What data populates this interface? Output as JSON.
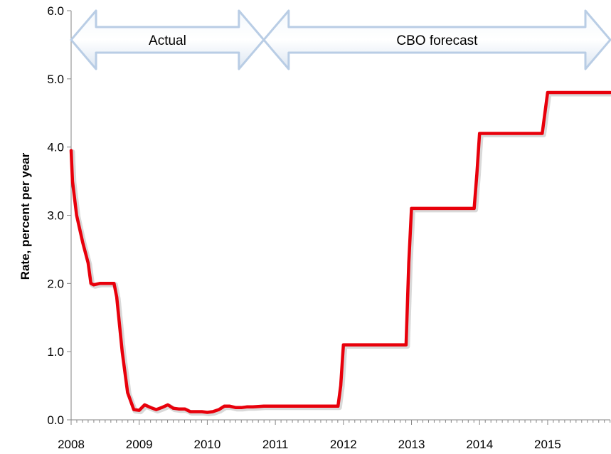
{
  "chart_data": {
    "type": "line",
    "title": "",
    "xlabel": "",
    "ylabel": "Rate, percent per year",
    "xlim": [
      2008,
      2015.92
    ],
    "ylim": [
      0,
      6
    ],
    "x_ticks": [
      "2008",
      "2009",
      "2010",
      "2011",
      "2012",
      "2013",
      "2014",
      "2015"
    ],
    "y_ticks": [
      "0.0",
      "1.0",
      "2.0",
      "3.0",
      "4.0",
      "5.0",
      "6.0"
    ],
    "grid": false,
    "legend": "none",
    "color": "#e8000b",
    "annotations": [
      {
        "label": "Actual",
        "x_start": 2008,
        "x_end": 2010.83
      },
      {
        "label": "CBO forecast",
        "x_start": 2010.83,
        "x_end": 2015.92
      }
    ],
    "series": [
      {
        "x": [
          2008.0,
          2008.02,
          2008.08,
          2008.17,
          2008.25,
          2008.29,
          2008.33,
          2008.42,
          2008.5,
          2008.58,
          2008.63,
          2008.67,
          2008.75,
          2008.83,
          2008.92,
          2009.0,
          2009.08,
          2009.17,
          2009.25,
          2009.33,
          2009.42,
          2009.5,
          2009.58,
          2009.67,
          2009.75,
          2009.83,
          2009.92,
          2010.0,
          2010.08,
          2010.17,
          2010.25,
          2010.33,
          2010.42,
          2010.5,
          2010.58,
          2010.67,
          2010.83,
          2011.0,
          2011.5,
          2011.92,
          2011.96,
          2012.0,
          2012.92,
          2012.96,
          2013.0,
          2013.92,
          2013.96,
          2014.0,
          2014.92,
          2014.96,
          2015.0,
          2015.92
        ],
        "y": [
          3.95,
          3.5,
          3.0,
          2.6,
          2.3,
          2.0,
          1.98,
          2.0,
          2.0,
          2.0,
          2.0,
          1.8,
          1.0,
          0.4,
          0.15,
          0.14,
          0.22,
          0.18,
          0.15,
          0.18,
          0.22,
          0.17,
          0.16,
          0.16,
          0.12,
          0.12,
          0.12,
          0.11,
          0.12,
          0.15,
          0.2,
          0.2,
          0.18,
          0.18,
          0.19,
          0.19,
          0.2,
          0.2,
          0.2,
          0.2,
          0.5,
          1.1,
          1.1,
          2.3,
          3.1,
          3.1,
          3.6,
          4.2,
          4.2,
          4.5,
          4.8,
          4.8
        ]
      }
    ]
  }
}
